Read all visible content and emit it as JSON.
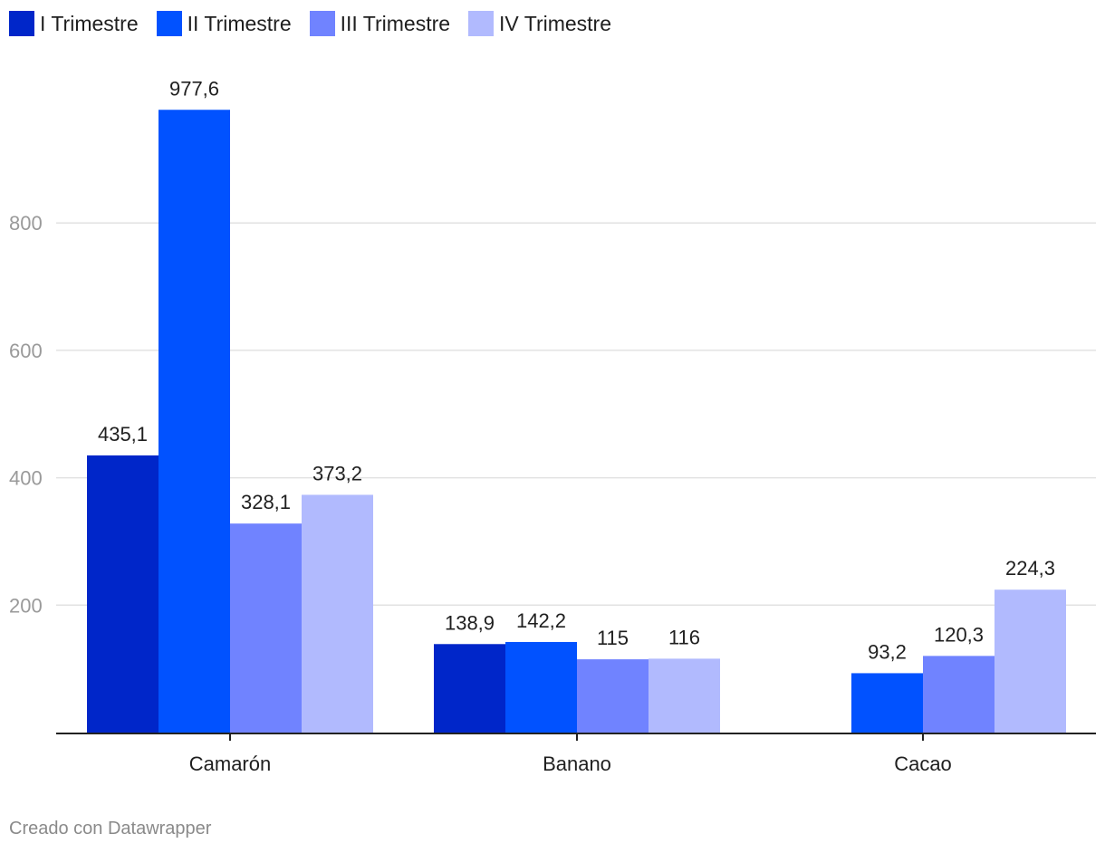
{
  "chart_data": {
    "type": "bar",
    "categories": [
      "Camarón",
      "Banano",
      "Cacao"
    ],
    "series": [
      {
        "name": "I Trimestre",
        "color": "#0026c9",
        "values": [
          435.1,
          138.9,
          null
        ],
        "labels": [
          "435,1",
          "138,9",
          ""
        ]
      },
      {
        "name": "II Trimestre",
        "color": "#0152ff",
        "values": [
          977.6,
          142.2,
          93.2
        ],
        "labels": [
          "977,6",
          "142,2",
          "93,2"
        ]
      },
      {
        "name": "III Trimestre",
        "color": "#7083ff",
        "values": [
          328.1,
          115,
          120.3
        ],
        "labels": [
          "328,1",
          "115",
          "120,3"
        ]
      },
      {
        "name": "IV Trimestre",
        "color": "#b1bafe",
        "values": [
          373.2,
          116,
          224.3
        ],
        "labels": [
          "373,2",
          "116",
          "224,3"
        ]
      }
    ],
    "yticks": [
      200,
      400,
      600,
      800
    ],
    "ylim": [
      0,
      1000
    ],
    "grid": true,
    "legend_position": "top-left",
    "title": "",
    "xlabel": "",
    "ylabel": ""
  },
  "footer": "Creado con Datawrapper"
}
